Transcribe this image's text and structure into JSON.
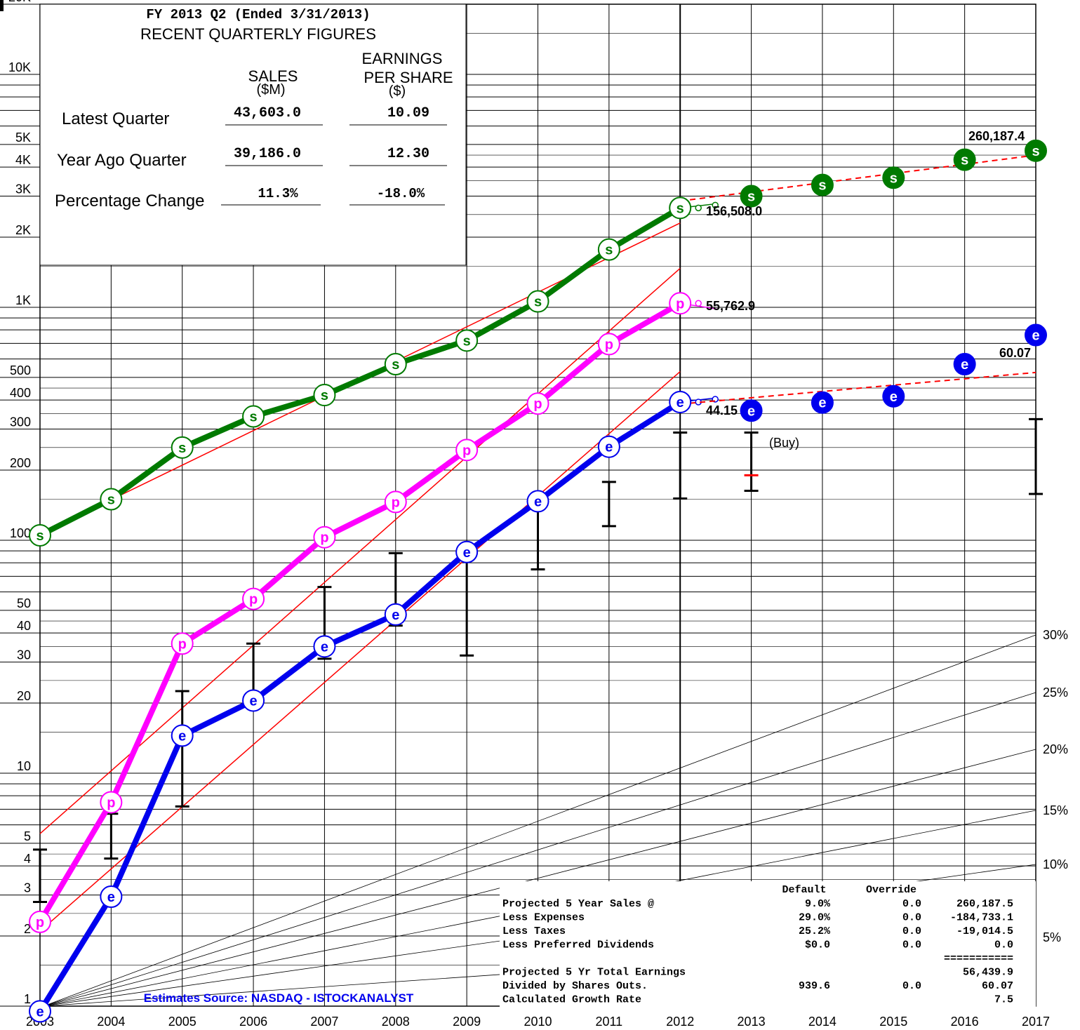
{
  "summary": {
    "title": "FY 2013 Q2 (Ended 3/31/2013)",
    "subtitle": "RECENT QUARTERLY FIGURES",
    "col_sales_line1": "SALES",
    "col_sales_line2": "($M)",
    "col_eps_line1": "EARNINGS",
    "col_eps_line2": "PER SHARE",
    "col_eps_line3": "($)",
    "rows": [
      {
        "label": "Latest Quarter",
        "sales": "43,603.0",
        "eps": "10.09"
      },
      {
        "label": "Year Ago Quarter",
        "sales": "39,186.0",
        "eps": "12.30"
      },
      {
        "label": "Percentage Change",
        "sales": "11.3%",
        "eps": "-18.0%"
      }
    ]
  },
  "projection_table": {
    "header_default": "Default",
    "header_override": "Override",
    "rows": [
      {
        "label": "Projected 5 Year Sales @",
        "default": "9.0%",
        "override": "0.0",
        "value": "260,187.5"
      },
      {
        "label": "Less Expenses",
        "default": "29.0%",
        "override": "0.0",
        "value": "-184,733.1"
      },
      {
        "label": "Less Taxes",
        "default": "25.2%",
        "override": "0.0",
        "value": "-19,014.5"
      },
      {
        "label": "Less Preferred Dividends",
        "default": "$0.0",
        "override": "0.0",
        "value": "0.0"
      },
      {
        "label": "",
        "default": "",
        "override": "",
        "value": "==========="
      },
      {
        "label": "Projected 5 Yr Total Earnings",
        "default": "",
        "override": "",
        "value": "56,439.9"
      },
      {
        "label": "Divided by Shares Outs.",
        "default": "939.6",
        "override": "0.0",
        "value": "60.07"
      },
      {
        "label": "Calculated Growth Rate",
        "default": "",
        "override": "",
        "value": "7.5"
      }
    ]
  },
  "source_note": "Estimates Source: NASDAQ - ISTOCKANALYST",
  "annotations": {
    "sales_latest": "156,508.0",
    "sales_projected": "260,187.4",
    "profit_latest": "55,762.9",
    "eps_latest": "44.15",
    "eps_projected": "60.07",
    "buy": "(Buy)"
  },
  "colors": {
    "sales": "#007a00",
    "profit": "#ff00ff",
    "eps": "#0000ee",
    "trend": "#ff0000",
    "range": "#000000"
  },
  "chart_data": {
    "type": "line",
    "scale": "log",
    "x": [
      2003,
      2004,
      2005,
      2006,
      2007,
      2008,
      2009,
      2010,
      2011,
      2012,
      2013,
      2014,
      2015,
      2016,
      2017
    ],
    "ylim": [
      1,
      20000
    ],
    "y_ticks": [
      "1",
      "2",
      "3",
      "4",
      "5",
      "10",
      "20",
      "30",
      "40",
      "50",
      "100",
      "200",
      "300",
      "400",
      "500",
      "1K",
      "2K",
      "3K",
      "4K",
      "5K",
      "10K",
      "20K"
    ],
    "growth_rate_labels": [
      "5%",
      "10%",
      "15%",
      "20%",
      "25%",
      "30%"
    ],
    "series": [
      {
        "key": "sales",
        "marker": "s",
        "x": [
          2003,
          2004,
          2005,
          2006,
          2007,
          2008,
          2009,
          2010,
          2011,
          2012
        ],
        "values": [
          105,
          150,
          250,
          340,
          420,
          570,
          720,
          1060,
          1770,
          2670
        ],
        "projected_x": [
          2013,
          2014,
          2015,
          2016,
          2017
        ],
        "projected_values": [
          3000,
          3350,
          3600,
          4300,
          4700
        ]
      },
      {
        "key": "profit",
        "marker": "p",
        "x": [
          2003,
          2004,
          2005,
          2006,
          2007,
          2008,
          2009,
          2010,
          2011,
          2012
        ],
        "values": [
          2.3,
          7.5,
          36,
          56,
          103,
          146,
          244,
          386,
          695,
          1040
        ]
      },
      {
        "key": "eps",
        "marker": "e",
        "x": [
          2003,
          2004,
          2005,
          2006,
          2007,
          2008,
          2009,
          2010,
          2011,
          2012
        ],
        "values": [
          0.95,
          2.95,
          14.5,
          20.5,
          35,
          48,
          89,
          147,
          252,
          392
        ],
        "projected_x": [
          2013,
          2014,
          2015,
          2016,
          2017
        ],
        "projected_values": [
          360,
          390,
          415,
          570,
          760
        ]
      }
    ],
    "price_ranges": [
      {
        "x": 2003,
        "low": 2.8,
        "high": 4.7
      },
      {
        "x": 2004,
        "low": 4.3,
        "high": 6.7
      },
      {
        "x": 2005,
        "low": 7.2,
        "high": 22.5
      },
      {
        "x": 2006,
        "low": 19,
        "high": 36
      },
      {
        "x": 2007,
        "low": 31,
        "high": 63
      },
      {
        "x": 2008,
        "low": 43,
        "high": 88
      },
      {
        "x": 2009,
        "low": 32,
        "high": 87
      },
      {
        "x": 2010,
        "low": 75,
        "high": 138
      },
      {
        "x": 2011,
        "low": 115,
        "high": 178
      },
      {
        "x": 2012,
        "low": 151,
        "high": 290
      },
      {
        "x": 2013,
        "low": 163,
        "high": 290,
        "current": 190
      },
      {
        "x": 2017,
        "low": 158,
        "high": 331
      }
    ]
  }
}
